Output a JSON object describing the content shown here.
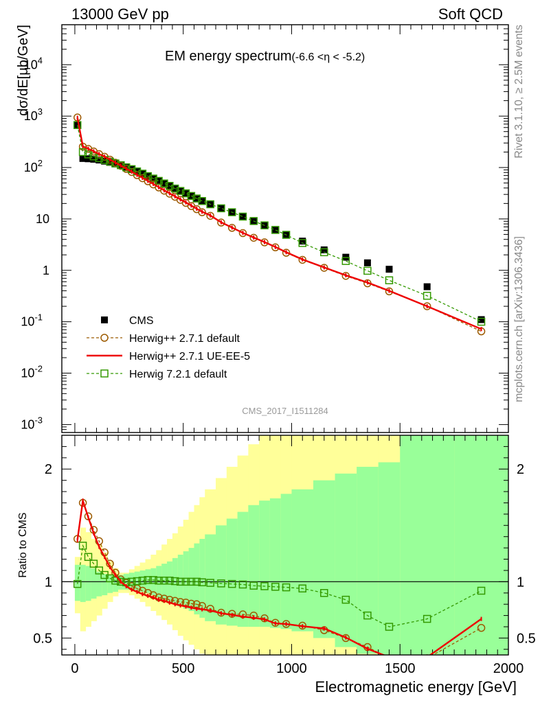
{
  "header": {
    "left": "13000 GeV pp",
    "right": "Soft QCD"
  },
  "side_text": {
    "rivet": "Rivet 3.1.10, ≥ 2.5M events",
    "mcplots": "mcplots.cern.ch [arXiv:1306.3436]"
  },
  "chart_data": [
    {
      "type": "scatter",
      "panel": "main",
      "title": "EM energy spectrum",
      "subtitle": "(-6.6 <η < -5.2)",
      "ylabel": "dσ/dE[μb/GeV]",
      "watermark": "CMS_2017_I1511284",
      "xlim": [
        -60,
        2000
      ],
      "ylim": [
        0.0007,
        60000
      ],
      "yscale": "log",
      "yticks": [
        {
          "v": 0.001,
          "b": "10",
          "e": "-3"
        },
        {
          "v": 0.01,
          "b": "10",
          "e": "-2"
        },
        {
          "v": 0.1,
          "b": "10",
          "e": "-1"
        },
        {
          "v": 1,
          "b": "1",
          "e": ""
        },
        {
          "v": 10,
          "b": "10",
          "e": ""
        },
        {
          "v": 100,
          "b": "10",
          "e": "2"
        },
        {
          "v": 1000,
          "b": "10",
          "e": "3"
        },
        {
          "v": 10000,
          "b": "10",
          "e": "4"
        }
      ],
      "legend": {
        "placement": "bottom-left",
        "entries": [
          "CMS",
          "Herwig++ 2.7.1 default",
          "Herwig++ 2.7.1 UE-EE-5",
          "Herwig 7.2.1 default"
        ]
      },
      "series": [
        {
          "name": "CMS",
          "style": "data",
          "color": "#000000",
          "x": [
            12,
            37,
            62,
            87,
            112,
            137,
            162,
            187,
            212,
            237,
            262,
            287,
            312,
            337,
            362,
            387,
            412,
            437,
            462,
            487,
            512,
            537,
            562,
            587,
            625,
            675,
            725,
            775,
            825,
            875,
            925,
            975,
            1050,
            1150,
            1250,
            1350,
            1450,
            1625,
            1875
          ],
          "y": [
            680,
            150,
            148,
            145,
            140,
            133,
            126,
            118,
            110,
            100,
            92,
            83,
            75,
            67,
            60,
            54,
            48,
            43,
            38.5,
            34.5,
            31,
            27.5,
            24.5,
            22,
            19,
            16,
            13.5,
            11.2,
            9.2,
            7.6,
            6.2,
            5,
            3.7,
            2.5,
            1.8,
            1.4,
            1.05,
            0.48,
            0.11
          ]
        },
        {
          "name": "Herwig++ 2.7.1 default",
          "style": "circle-dashed",
          "color": "#9c5a00",
          "x": [
            12,
            37,
            62,
            87,
            112,
            137,
            162,
            187,
            212,
            237,
            262,
            287,
            312,
            337,
            362,
            387,
            412,
            437,
            462,
            487,
            512,
            537,
            562,
            587,
            625,
            675,
            725,
            775,
            825,
            875,
            925,
            975,
            1050,
            1150,
            1250,
            1350,
            1450,
            1625,
            1875
          ],
          "y": [
            940,
            255,
            230,
            205,
            182,
            162,
            142,
            124,
            108,
            94,
            82,
            71,
            62,
            54,
            47,
            41,
            35.5,
            31,
            27,
            23.5,
            20.5,
            17.8,
            15.5,
            13.5,
            11.5,
            8.5,
            6.7,
            5.3,
            4.3,
            3.5,
            2.8,
            2.2,
            1.6,
            1.12,
            0.78,
            0.56,
            0.39,
            0.2,
            0.065
          ]
        },
        {
          "name": "Herwig++ 2.7.1 UE-EE-5",
          "style": "solid",
          "color": "#ee0000",
          "x": [
            12,
            37,
            62,
            87,
            112,
            137,
            162,
            187,
            212,
            237,
            262,
            287,
            312,
            337,
            362,
            387,
            412,
            437,
            462,
            487,
            512,
            537,
            562,
            587,
            625,
            675,
            725,
            775,
            825,
            875,
            925,
            975,
            1050,
            1150,
            1250,
            1350,
            1450,
            1625,
            1875
          ],
          "y": [
            930,
            258,
            232,
            207,
            183,
            163,
            143,
            125,
            109,
            95,
            83,
            72,
            63,
            55,
            48,
            41.5,
            36,
            31.5,
            27.5,
            24,
            21,
            18.2,
            15.8,
            13.8,
            11.7,
            8.6,
            6.8,
            5.35,
            4.35,
            3.55,
            2.85,
            2.25,
            1.63,
            1.14,
            0.8,
            0.58,
            0.4,
            0.2,
            0.072
          ]
        },
        {
          "name": "Herwig 7.2.1 default",
          "style": "square-dashed",
          "color": "#339900",
          "x": [
            12,
            37,
            62,
            87,
            112,
            137,
            162,
            187,
            212,
            237,
            262,
            287,
            312,
            337,
            362,
            387,
            412,
            437,
            462,
            487,
            512,
            537,
            562,
            587,
            625,
            675,
            725,
            775,
            825,
            875,
            925,
            975,
            1050,
            1150,
            1250,
            1350,
            1450,
            1625,
            1875
          ],
          "y": [
            670,
            200,
            180,
            165,
            152,
            140,
            130,
            120,
            111,
            101,
            93,
            84,
            76,
            68,
            61,
            55,
            49,
            44,
            39,
            35,
            31.5,
            28,
            25,
            22.3,
            19.3,
            16.1,
            13.5,
            11.1,
            9.1,
            7.5,
            6.1,
            4.9,
            3.4,
            2.25,
            1.52,
            0.98,
            0.64,
            0.32,
            0.1
          ]
        }
      ]
    },
    {
      "type": "line",
      "panel": "ratio",
      "xlabel": "Electromagnetic energy [GeV]",
      "ylabel": "Ratio to CMS",
      "xlim": [
        -60,
        2000
      ],
      "ylim": [
        0.35,
        2.3
      ],
      "xticks": [
        0,
        500,
        1000,
        1500,
        2000
      ],
      "yticks": [
        0.5,
        1,
        2
      ],
      "reference_line": 1,
      "uncertainty_bands": {
        "colors": {
          "outer": "#ffff99",
          "inner": "#99ff99"
        },
        "edges": [
          0,
          25,
          50,
          75,
          100,
          125,
          150,
          175,
          200,
          225,
          250,
          275,
          300,
          325,
          350,
          375,
          400,
          425,
          450,
          475,
          500,
          525,
          550,
          575,
          600,
          650,
          700,
          750,
          800,
          850,
          900,
          950,
          1000,
          1100,
          1200,
          1300,
          1400,
          1500,
          1750,
          2000
        ],
        "outer_lo": [
          0.72,
          0.56,
          0.6,
          0.65,
          0.7,
          0.76,
          0.82,
          0.87,
          0.9,
          0.9,
          0.88,
          0.85,
          0.82,
          0.78,
          0.74,
          0.7,
          0.66,
          0.62,
          0.57,
          0.52,
          0.48,
          0.44,
          0.4,
          0.36,
          0.3,
          0.3,
          0.3,
          0.3,
          0.3,
          0.3,
          0.3,
          0.3,
          0.3,
          0.3,
          0.3,
          0.3,
          0.3,
          0.3,
          0.3
        ],
        "outer_hi": [
          1.22,
          1.48,
          1.44,
          1.38,
          1.33,
          1.26,
          1.18,
          1.12,
          1.08,
          1.08,
          1.11,
          1.14,
          1.17,
          1.2,
          1.24,
          1.28,
          1.33,
          1.38,
          1.43,
          1.49,
          1.55,
          1.62,
          1.68,
          1.75,
          1.82,
          1.92,
          2.02,
          2.12,
          2.22,
          2.35,
          2.4,
          2.4,
          2.4,
          2.4,
          2.4,
          2.4,
          2.4,
          2.4,
          2.4
        ],
        "inner_lo": [
          0.83,
          0.82,
          0.83,
          0.85,
          0.87,
          0.88,
          0.9,
          0.91,
          0.93,
          0.93,
          0.93,
          0.92,
          0.91,
          0.9,
          0.88,
          0.86,
          0.84,
          0.82,
          0.8,
          0.78,
          0.76,
          0.74,
          0.71,
          0.68,
          0.65,
          0.62,
          0.61,
          0.6,
          0.6,
          0.6,
          0.59,
          0.58,
          0.56,
          0.5,
          0.42,
          0.36,
          0.3,
          0.3,
          0.3
        ],
        "inner_hi": [
          1.15,
          1.15,
          1.14,
          1.12,
          1.09,
          1.07,
          1.06,
          1.05,
          1.06,
          1.07,
          1.08,
          1.09,
          1.1,
          1.11,
          1.12,
          1.14,
          1.16,
          1.18,
          1.21,
          1.24,
          1.27,
          1.3,
          1.34,
          1.38,
          1.42,
          1.5,
          1.56,
          1.62,
          1.68,
          1.72,
          1.74,
          1.78,
          1.82,
          1.9,
          1.96,
          2.02,
          2.06,
          2.4,
          2.4
        ]
      },
      "series": [
        {
          "name": "Herwig++ 2.7.1 default",
          "style": "circle-dashed",
          "color": "#9c5a00",
          "x": [
            12,
            37,
            62,
            87,
            112,
            137,
            162,
            187,
            212,
            237,
            262,
            287,
            312,
            337,
            362,
            387,
            412,
            437,
            462,
            487,
            512,
            537,
            562,
            587,
            625,
            675,
            725,
            775,
            825,
            875,
            925,
            975,
            1050,
            1150,
            1250,
            1350,
            1450,
            1625,
            1875
          ],
          "y": [
            1.38,
            1.7,
            1.58,
            1.46,
            1.36,
            1.26,
            1.16,
            1.08,
            1.02,
            0.99,
            0.96,
            0.94,
            0.92,
            0.9,
            0.88,
            0.86,
            0.85,
            0.84,
            0.83,
            0.82,
            0.815,
            0.805,
            0.8,
            0.785,
            0.76,
            0.725,
            0.715,
            0.71,
            0.7,
            0.675,
            0.635,
            0.625,
            0.61,
            0.57,
            0.5,
            0.42,
            0.32,
            0.32,
            0.59
          ]
        },
        {
          "name": "Herwig++ 2.7.1 UE-EE-5",
          "style": "solid",
          "color": "#ee0000",
          "x": [
            12,
            37,
            62,
            87,
            112,
            137,
            162,
            187,
            212,
            237,
            262,
            287,
            312,
            337,
            362,
            387,
            412,
            437,
            462,
            487,
            512,
            537,
            562,
            587,
            625,
            675,
            725,
            775,
            825,
            875,
            925,
            975,
            1050,
            1150,
            1250,
            1350,
            1450,
            1625,
            1875
          ],
          "y": [
            1.37,
            1.72,
            1.57,
            1.43,
            1.31,
            1.22,
            1.13,
            1.06,
            1.0,
            0.96,
            0.93,
            0.91,
            0.89,
            0.875,
            0.86,
            0.84,
            0.83,
            0.815,
            0.8,
            0.79,
            0.78,
            0.77,
            0.76,
            0.755,
            0.745,
            0.72,
            0.705,
            0.69,
            0.68,
            0.665,
            0.63,
            0.625,
            0.605,
            0.585,
            0.505,
            0.405,
            0.33,
            0.33,
            0.67
          ]
        },
        {
          "name": "Herwig 7.2.1 default",
          "style": "square-dashed",
          "color": "#339900",
          "x": [
            12,
            37,
            62,
            87,
            112,
            137,
            162,
            187,
            212,
            237,
            262,
            287,
            312,
            337,
            362,
            387,
            412,
            437,
            462,
            487,
            512,
            537,
            562,
            587,
            625,
            675,
            725,
            775,
            825,
            875,
            925,
            975,
            1050,
            1150,
            1250,
            1350,
            1450,
            1625,
            1875
          ],
          "y": [
            0.98,
            1.32,
            1.22,
            1.16,
            1.1,
            1.06,
            1.03,
            1.01,
            1.0,
            0.995,
            1.0,
            1.005,
            1.01,
            1.015,
            1.015,
            1.01,
            1.01,
            1.01,
            1.005,
            1.0,
            1.0,
            1.0,
            1.0,
            0.995,
            0.99,
            0.985,
            0.98,
            0.975,
            0.965,
            0.96,
            0.955,
            0.95,
            0.94,
            0.9,
            0.84,
            0.7,
            0.6,
            0.67,
            0.92
          ]
        }
      ]
    }
  ]
}
